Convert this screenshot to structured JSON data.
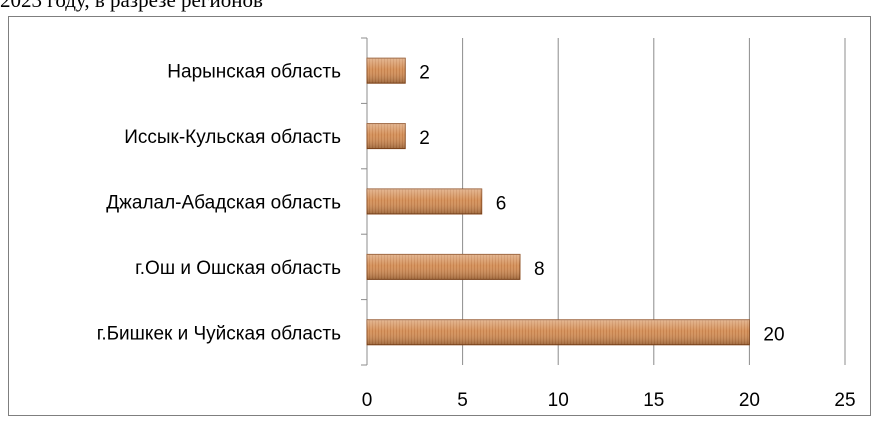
{
  "caption": "2023 году, в разрезе регионов",
  "chart_data": {
    "type": "bar",
    "orientation": "horizontal",
    "title": "",
    "xlabel": "",
    "ylabel": "",
    "categories": [
      "г.Бишкек и Чуйская область",
      "г.Ош и Ошская область",
      "Джалал-Абадская область",
      "Иссык-Кульская область",
      "Нарынская область"
    ],
    "values": [
      20,
      8,
      6,
      2,
      2
    ],
    "xlim": [
      0,
      25
    ],
    "xticks": [
      "0",
      "5",
      "10",
      "15",
      "20",
      "25"
    ],
    "grid": true,
    "legend": "none",
    "bar_color": "#d9935a",
    "bar_edge_color": "#8b4a1c"
  }
}
